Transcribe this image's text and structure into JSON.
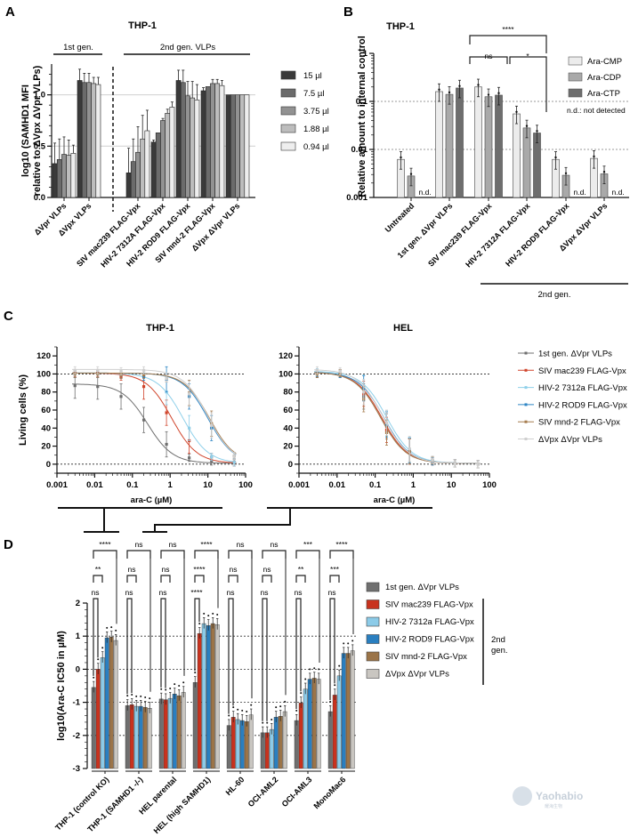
{
  "watermark": {
    "text": "Yaohabio",
    "subtext": "耀海生物"
  },
  "chart_data": [
    {
      "panel": "A",
      "type": "bar",
      "title": "THP-1",
      "ylabel": "log10 (SAMHD1 MFI relative to ΔVpx ΔVpr VLPs)",
      "xlabel": "",
      "ylim": [
        0,
        1.3
      ],
      "yticks": [
        "0.0",
        "0.5",
        "1.0"
      ],
      "ytick_values": [
        0,
        0.5,
        1.0
      ],
      "grid": "horizontal at 0.5 and 1.0",
      "legend_position": "right",
      "groups": [
        {
          "label": "1st gen.",
          "categories": [
            0,
            1
          ]
        },
        {
          "label": "2nd gen. VLPs",
          "categories": [
            2,
            3,
            4,
            5,
            6
          ]
        }
      ],
      "categories": [
        "ΔVpr VLPs",
        "ΔVpx VLPs",
        "SIV mac239 FLAG-Vpx",
        "HIV-2 7312A FLAG-Vpx",
        "HIV-2 ROD9 FLAG-Vpx",
        "SIV mnd-2 FLAG-Vpx",
        "ΔVpx ΔVpr VLPs"
      ],
      "series": [
        {
          "name": "15 µl",
          "color": "#3a3a3a",
          "values": [
            0.33,
            1.14,
            0.24,
            0.54,
            1.14,
            1.04,
            1.0
          ],
          "errors": [
            0.2,
            0.11,
            0.24,
            0.02,
            0.1,
            0.03,
            0
          ]
        },
        {
          "name": "7.5 µl",
          "color": "#6b6b6b",
          "values": [
            0.37,
            1.12,
            0.35,
            0.63,
            1.12,
            1.08,
            1.0
          ],
          "errors": [
            0.2,
            0.09,
            0.22,
            0,
            0.12,
            0,
            0
          ]
        },
        {
          "name": "3.75 µl",
          "color": "#929292",
          "values": [
            0.42,
            1.12,
            0.44,
            0.75,
            0.99,
            1.11,
            1.0
          ],
          "errors": [
            0.17,
            0.09,
            0.25,
            0.02,
            0.14,
            0.04,
            0
          ]
        },
        {
          "name": "1.88 µl",
          "color": "#bdbdbd",
          "values": [
            0.41,
            1.11,
            0.57,
            0.82,
            0.97,
            1.11,
            1.0
          ],
          "errors": [
            0.15,
            0.06,
            0.23,
            0.04,
            0.16,
            0.04,
            0
          ]
        },
        {
          "name": "0.94 µl",
          "color": "#eeeeee",
          "values": [
            0.43,
            1.1,
            0.65,
            0.88,
            0.95,
            1.09,
            1.0
          ],
          "errors": [
            0.08,
            0.07,
            0.2,
            0.05,
            0.15,
            0.05,
            0
          ]
        }
      ]
    },
    {
      "panel": "B",
      "type": "bar",
      "title": "THP-1",
      "ylabel": "Relative amount  to internal control",
      "xlabel": "",
      "yscale": "log",
      "ylim": [
        0.001,
        1
      ],
      "yticks": [
        "0.001",
        "0.01",
        "0.1",
        "1"
      ],
      "ytick_values": [
        0.001,
        0.01,
        0.1,
        1
      ],
      "grid": "dotted at 0.01 and 0.1",
      "legend_position": "top-right",
      "legend_note": "n.d.: not detected",
      "nd_label": "n.d.",
      "group_label": "2nd gen.",
      "categories": [
        "Untreated",
        "1st gen. ΔVpr VLPs",
        "SIV mac239 FLAG-Vpx",
        "HIV-2 7312A FLAG-Vpx",
        "HIV-2 ROD9 FLAG-Vpx",
        "ΔVpx ΔVpr VLPs"
      ],
      "series": [
        {
          "name": "Ara-CMP",
          "color": "#ececec",
          "values": [
            0.0062,
            0.16,
            0.2,
            0.055,
            0.0062,
            0.0065
          ]
        },
        {
          "name": "Ara-CDP",
          "color": "#a9a9a9",
          "values": [
            0.0028,
            0.14,
            0.125,
            0.028,
            0.0029,
            0.0031
          ]
        },
        {
          "name": "Ara-CTP",
          "color": "#6e6e6e",
          "values": [
            null,
            0.19,
            0.135,
            0.022,
            null,
            null
          ]
        }
      ],
      "significance": [
        {
          "from": "SIV mac239 FLAG-Vpx",
          "to": "HIV-2 7312A FLAG-Vpx",
          "label": "****"
        },
        {
          "from": "SIV mac239 FLAG-Vpx",
          "to": "HIV-2 7312A FLAG-Vpx (CMP)",
          "label": "ns"
        },
        {
          "from": "HIV-2 7312A FLAG-Vpx (CMP)",
          "to": "HIV-2 7312A FLAG-Vpx (CTP)",
          "label": "*"
        }
      ]
    },
    {
      "panel": "C-left",
      "type": "line",
      "title": "THP-1",
      "xlabel": "ara-C (µM)",
      "ylabel": "Living cells (%)",
      "xscale": "log",
      "xlim": [
        0.001,
        100
      ],
      "ylim": [
        -10,
        130
      ],
      "xticks": [
        "0.001",
        "0.01",
        "0.1",
        "1",
        "10",
        "100"
      ],
      "yticks": [
        "0",
        "20",
        "40",
        "60",
        "80",
        "100",
        "120"
      ],
      "x": [
        0.003,
        0.012,
        0.05,
        0.2,
        0.8,
        3.2,
        12.5,
        50
      ],
      "series": [
        {
          "name": "1st gen. ΔVpr VLPs",
          "color": "#6f6f6f",
          "ic50": 0.25,
          "top": 88,
          "values": [
            87,
            86,
            75,
            49,
            22,
            7,
            3,
            2
          ]
        },
        {
          "name": "SIV mac239 FLAG-Vpx",
          "color": "#d0442b",
          "ic50": 1.1,
          "top": 100,
          "values": [
            101,
            101,
            97,
            86,
            57,
            26,
            8,
            2
          ]
        },
        {
          "name": "HIV-2 7312a FLAG-Vpx",
          "color": "#8fd0ea",
          "ic50": 2.2,
          "top": 100,
          "values": [
            100,
            100,
            99,
            97,
            80,
            40,
            8,
            2
          ]
        },
        {
          "name": "HIV-2 ROD9 FLAG-Vpx",
          "color": "#2f86c5",
          "ic50": 10,
          "top": 100,
          "values": [
            100,
            100,
            99,
            97,
            94,
            75,
            40,
            9
          ]
        },
        {
          "name": "SIV mnd-2 FLAG-Vpx",
          "color": "#a67c4e",
          "ic50": 11,
          "top": 100,
          "values": [
            100,
            100,
            99,
            99,
            95,
            79,
            45,
            9
          ]
        },
        {
          "name": "ΔVpx ΔVpr VLPs",
          "color": "#cfcfcf",
          "ic50": 10,
          "top": 104,
          "values": [
            104,
            104,
            103,
            104,
            95,
            78,
            43,
            9
          ]
        }
      ]
    },
    {
      "panel": "C-right",
      "type": "line",
      "title": "HEL",
      "xlabel": "ara-C (µM)",
      "ylabel": "",
      "xscale": "log",
      "xlim": [
        0.001,
        100
      ],
      "ylim": [
        -10,
        130
      ],
      "xticks": [
        "0.001",
        "0.01",
        "0.1",
        "1",
        "10",
        "100"
      ],
      "yticks": [
        "0",
        "20",
        "40",
        "60",
        "80",
        "100",
        "120"
      ],
      "legend_position": "right",
      "x": [
        0.003,
        0.012,
        0.05,
        0.2,
        0.8,
        3.2,
        12.5,
        50
      ],
      "series": [
        {
          "name": "1st gen. ΔVpr VLPs",
          "color": "#6f6f6f",
          "ic50": 0.14,
          "top": 101,
          "values": [
            100,
            100,
            75,
            42,
            15,
            4,
            1,
            0
          ]
        },
        {
          "name": "SIV mac239 FLAG-Vpx",
          "color": "#d0442b",
          "ic50": 0.15,
          "top": 101,
          "values": [
            101,
            101,
            78,
            38,
            14,
            3,
            1,
            0
          ]
        },
        {
          "name": "HIV-2 7312a FLAG-Vpx",
          "color": "#8fd0ea",
          "ic50": 0.2,
          "top": 102,
          "values": [
            102,
            101,
            85,
            45,
            16,
            4,
            1,
            0
          ]
        },
        {
          "name": "HIV-2 ROD9 FLAG-Vpx",
          "color": "#2f86c5",
          "ic50": 0.17,
          "top": 101,
          "values": [
            101,
            100,
            84,
            44,
            15,
            3,
            1,
            0
          ]
        },
        {
          "name": "SIV mnd-2 FLAG-Vpx",
          "color": "#a67c4e",
          "ic50": 0.14,
          "top": 101,
          "values": [
            100,
            101,
            72,
            35,
            14,
            4,
            1,
            0
          ]
        },
        {
          "name": "ΔVpx ΔVpr VLPs",
          "color": "#cfcfcf",
          "ic50": 0.16,
          "top": 104,
          "values": [
            104,
            103,
            80,
            46,
            17,
            5,
            1,
            0
          ]
        }
      ]
    },
    {
      "panel": "D",
      "type": "bar",
      "title": "",
      "ylabel": "log10(Ara-C IC50 in µM)",
      "xlabel": "",
      "ylim": [
        -3,
        2
      ],
      "yticks": [
        "-3",
        "-2",
        "-1",
        "0",
        "1",
        "2"
      ],
      "ytick_values": [
        -3,
        -2,
        -1,
        0,
        1,
        2
      ],
      "grid": "dotted at -2, -1, 0, 1",
      "legend_position": "right",
      "legend_group_label": "2nd gen.",
      "categories": [
        "THP-1 (control KO)",
        "THP-1 (SAMHD1 -/-)",
        "HEL parental",
        "HEL (high SAMHD1)",
        "HL-60",
        "OCI-AML2",
        "OCI-AML3",
        "MonoMac6"
      ],
      "series": [
        {
          "name": "1st gen. ΔVpr VLPs",
          "color": "#6f6f6f",
          "values": [
            -0.55,
            -1.1,
            -0.9,
            -0.4,
            -1.7,
            -1.92,
            -1.55,
            -1.28
          ]
        },
        {
          "name": "SIV mac239 FLAG-Vpx",
          "color": "#c8321e",
          "values": [
            0.0,
            -1.07,
            -0.92,
            1.08,
            -1.45,
            -1.92,
            -1.02,
            -0.78
          ]
        },
        {
          "name": "HIV-2 7312a FLAG-Vpx",
          "color": "#8ccbe8",
          "values": [
            0.35,
            -1.12,
            -0.88,
            1.38,
            -1.52,
            -1.82,
            -0.6,
            -0.2
          ]
        },
        {
          "name": "HIV-2 ROD9 FLAG-Vpx",
          "color": "#2a7fc0",
          "values": [
            0.95,
            -1.12,
            -0.75,
            1.32,
            -1.55,
            -1.45,
            -0.3,
            0.48
          ]
        },
        {
          "name": "SIV mnd-2 FLAG-Vpx",
          "color": "#9b7448",
          "values": [
            0.97,
            -1.15,
            -0.8,
            1.38,
            -1.58,
            -1.42,
            -0.27,
            0.48
          ]
        },
        {
          "name": "ΔVpx ΔVpr VLPs",
          "color": "#c9c6c1",
          "values": [
            0.87,
            -1.18,
            -0.7,
            1.35,
            -1.38,
            -1.28,
            -0.3,
            0.56
          ]
        }
      ],
      "significance": [
        {
          "row": "top",
          "labels": [
            "****",
            "ns",
            "ns",
            "****",
            "ns",
            "ns",
            "***",
            "****"
          ]
        },
        {
          "row": "middle",
          "labels": [
            "**",
            "ns",
            "ns",
            "****",
            "ns",
            "ns",
            "**",
            "***"
          ]
        },
        {
          "row": "bottom",
          "labels": [
            "ns",
            "ns",
            "ns",
            "****",
            "ns",
            "ns",
            "ns",
            "ns"
          ]
        }
      ]
    }
  ],
  "panels": {
    "A": {
      "letter": "A"
    },
    "B": {
      "letter": "B"
    },
    "C": {
      "letter": "C"
    },
    "D": {
      "letter": "D"
    }
  }
}
